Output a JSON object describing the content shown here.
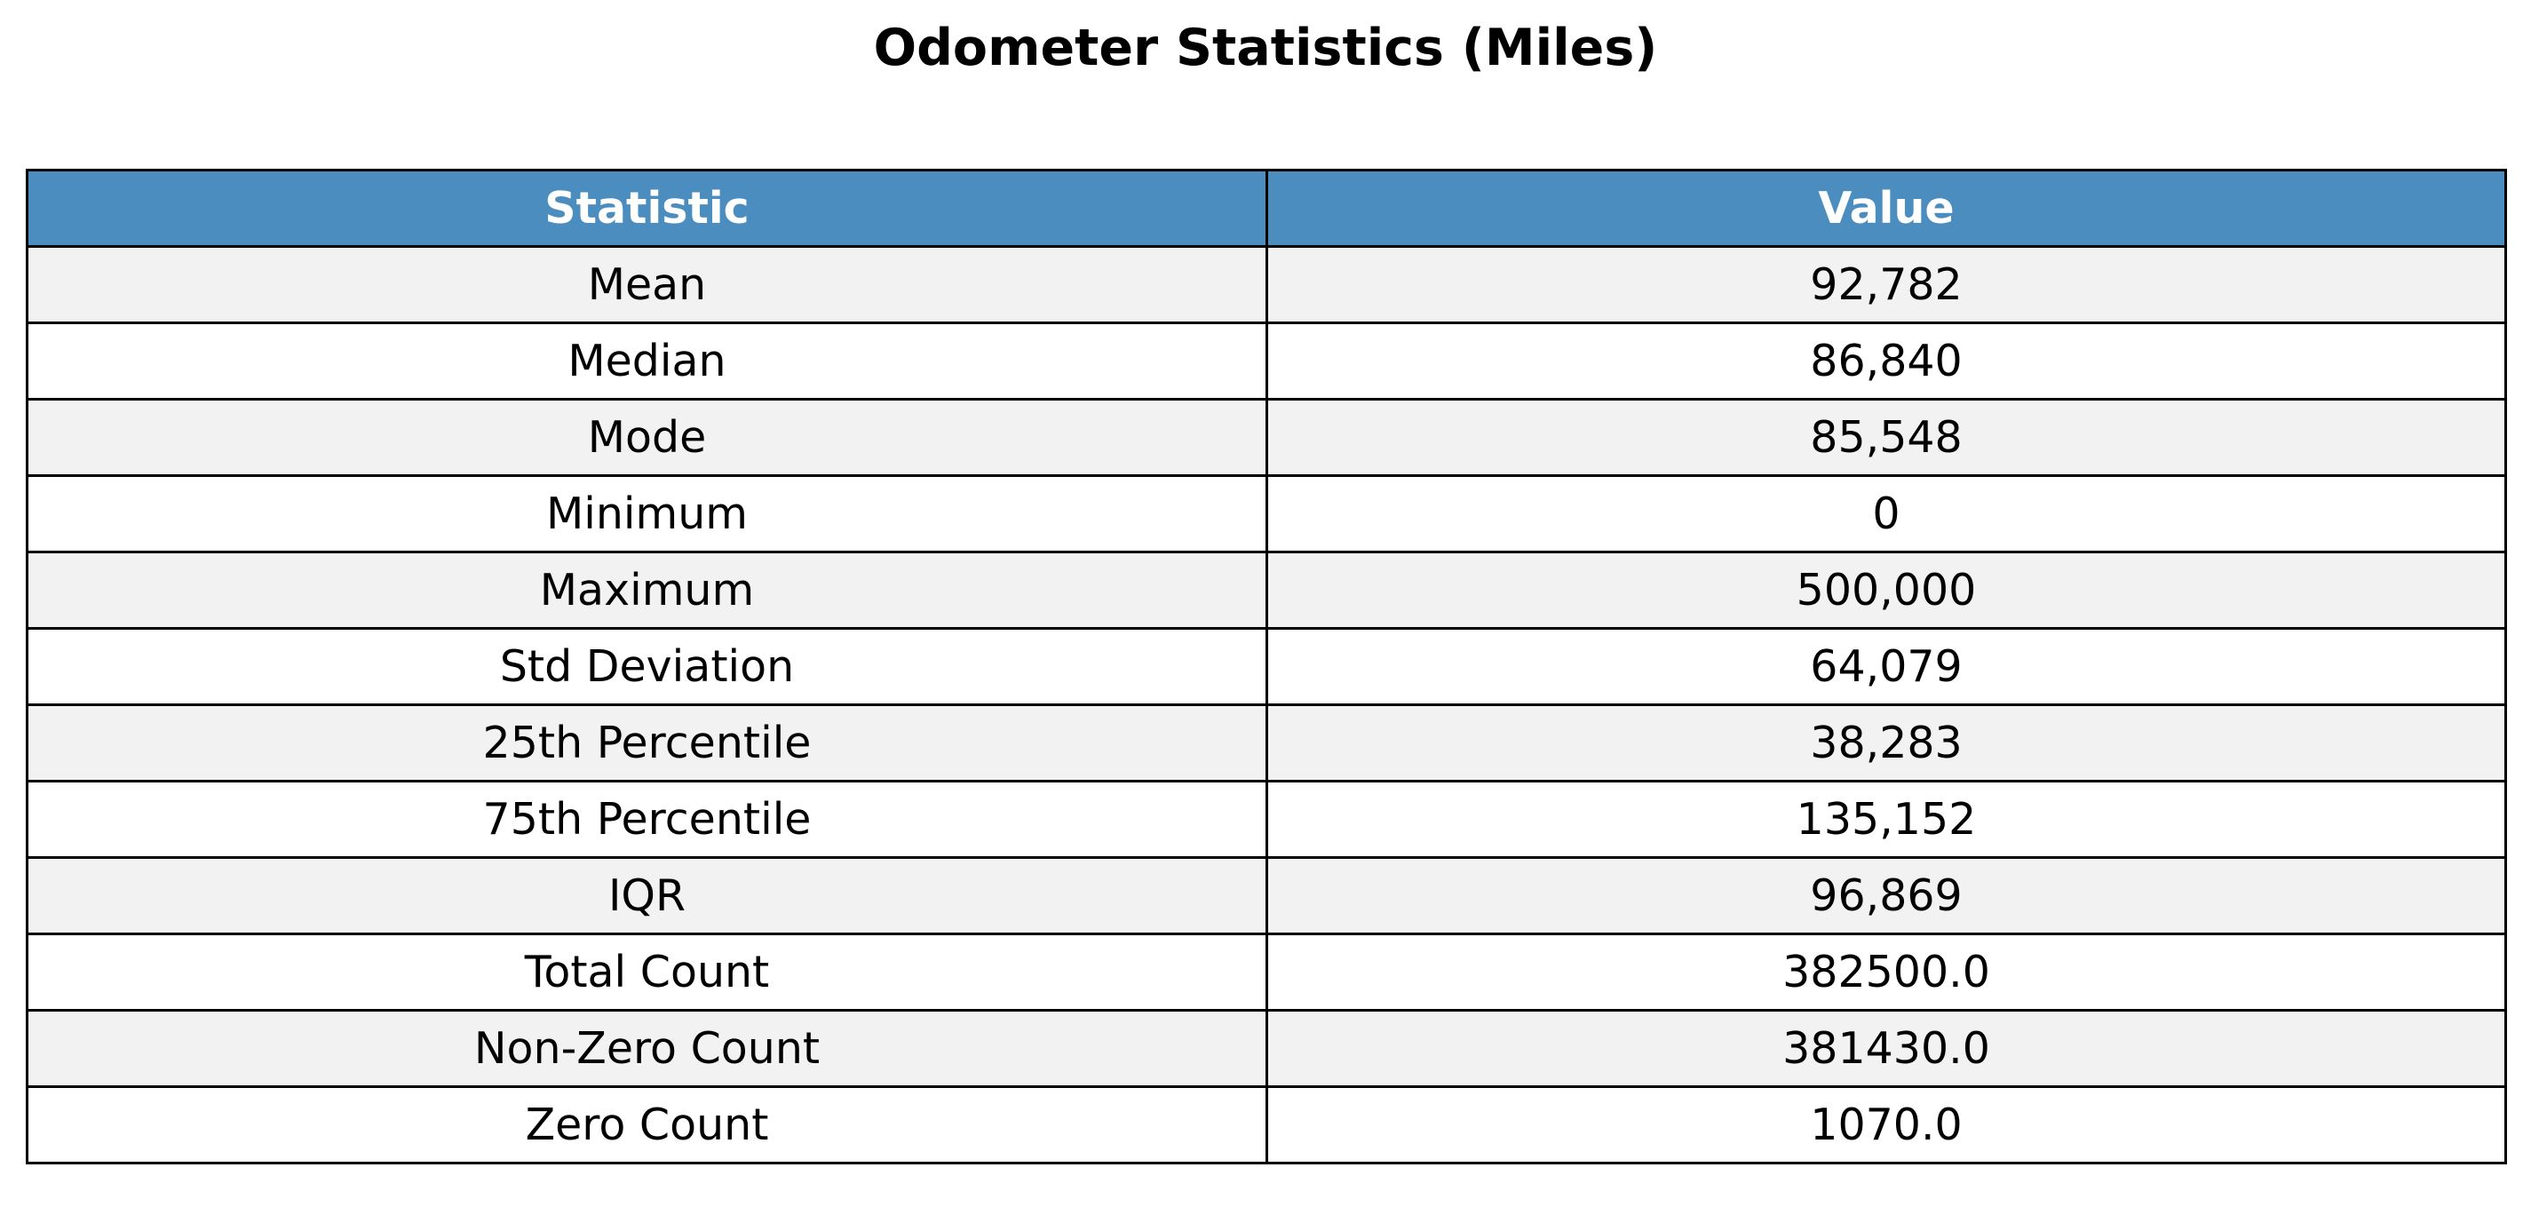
{
  "chart_data": {
    "type": "table",
    "title": "Odometer Statistics (Miles)",
    "columns": [
      "Statistic",
      "Value"
    ],
    "rows": [
      [
        "Mean",
        "92,782"
      ],
      [
        "Median",
        "86,840"
      ],
      [
        "Mode",
        "85,548"
      ],
      [
        "Minimum",
        "0"
      ],
      [
        "Maximum",
        "500,000"
      ],
      [
        "Std Deviation",
        "64,079"
      ],
      [
        "25th Percentile",
        "38,283"
      ],
      [
        "75th Percentile",
        "135,152"
      ],
      [
        "IQR",
        "96,869"
      ],
      [
        "Total Count",
        "382500.0"
      ],
      [
        "Non-Zero Count",
        "381430.0"
      ],
      [
        "Zero Count",
        "1070.0"
      ]
    ],
    "colors": {
      "header_bg": "#4C8DBF",
      "header_text": "#FFFFFF",
      "row_odd_bg": "#F2F2F2",
      "row_even_bg": "#FFFFFF",
      "border": "#000000"
    }
  }
}
